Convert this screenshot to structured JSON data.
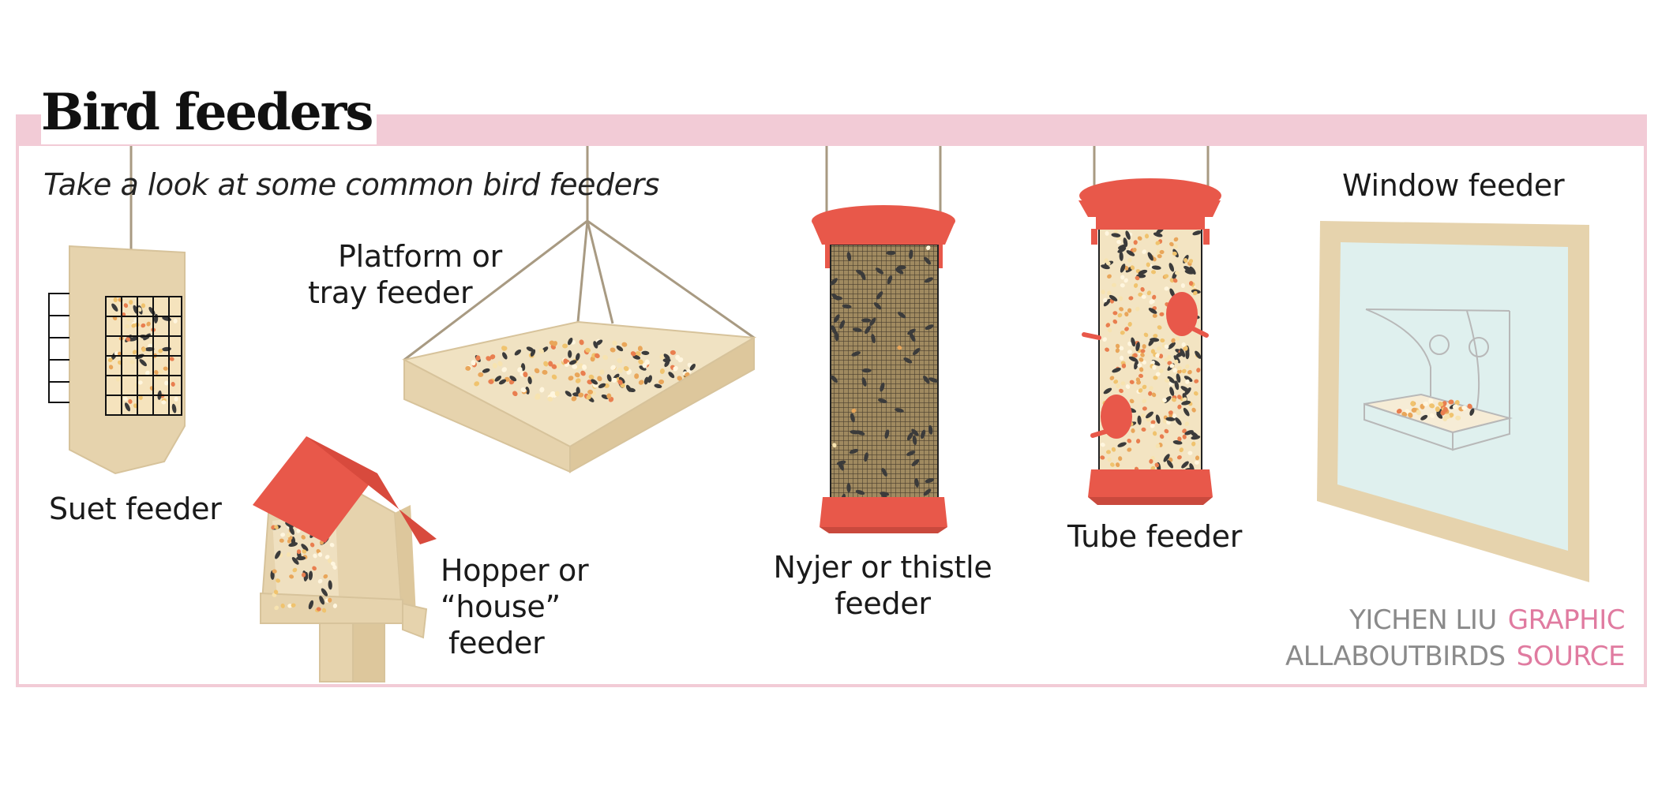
{
  "title": "Bird feeders",
  "subtitle": "Take a look at some common bird feeders",
  "feeders": {
    "suet": "Suet feeder",
    "platform_l1": "Platform or",
    "platform_l2": "tray feeder",
    "hopper_l1": "Hopper or",
    "hopper_l2": "“house”",
    "hopper_l3": "feeder",
    "nyjer_l1": "Nyjer or thistle",
    "nyjer_l2": "feeder",
    "tube": "Tube feeder",
    "window": "Window feeder"
  },
  "credits": {
    "graphic_name": "YICHEN LIU",
    "graphic_role": "GRAPHIC",
    "source_name": "ALLABOUTBIRDS",
    "source_role": "SOURCE"
  },
  "colors": {
    "frame_pink": "#f2cbd6",
    "feeder_red": "#e8584a",
    "wood_tan": "#e6d3ad",
    "glass_blue": "#dff0ee",
    "credit_pink": "#e07ba0"
  }
}
